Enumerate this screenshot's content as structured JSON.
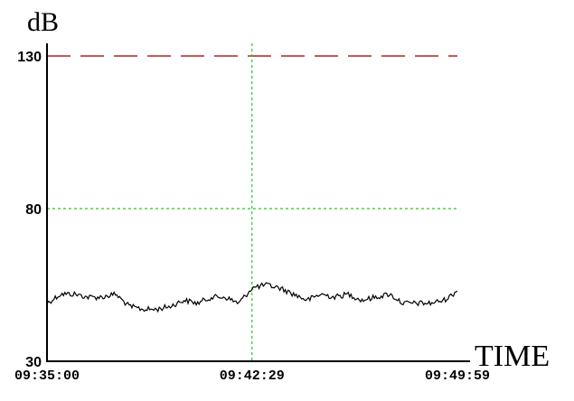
{
  "chart_data": {
    "type": "line",
    "title": "",
    "ylabel": "dB",
    "xlabel": "TIME",
    "ylim": [
      30,
      130
    ],
    "yticks": [
      "130",
      "80",
      "30"
    ],
    "xticks": [
      "09:35:00",
      "09:42:29",
      "09:49:59"
    ],
    "xlim_seconds": [
      0,
      899
    ],
    "grid": "dotted vertical at 09:42:29, dotted horizontal at 80",
    "reference_lines": [
      {
        "y": 130,
        "style": "dashed",
        "color": "#b22222"
      },
      {
        "y": 80,
        "style": "dotted",
        "color": "#22cc22"
      },
      {
        "x": "09:42:29",
        "style": "dotted",
        "color": "#22cc22"
      }
    ],
    "series": [
      {
        "color": "#000000",
        "x": [
          "09:35:00",
          "09:35:30",
          "09:36:00",
          "09:36:30",
          "09:37:00",
          "09:37:30",
          "09:38:00",
          "09:38:30",
          "09:39:00",
          "09:39:30",
          "09:40:00",
          "09:40:30",
          "09:41:00",
          "09:41:30",
          "09:42:00",
          "09:42:29",
          "09:43:00",
          "09:43:30",
          "09:44:00",
          "09:44:30",
          "09:45:00",
          "09:45:30",
          "09:46:00",
          "09:46:30",
          "09:47:00",
          "09:47:30",
          "09:48:00",
          "09:48:30",
          "09:49:00",
          "09:49:30",
          "09:49:59"
        ],
        "values": [
          49,
          52,
          52,
          51,
          51,
          52,
          48,
          47,
          47,
          48,
          50,
          49,
          51,
          51,
          49,
          54,
          55,
          54,
          52,
          50,
          52,
          51,
          52,
          50,
          51,
          52,
          49,
          49,
          49,
          50,
          53
        ]
      }
    ]
  }
}
